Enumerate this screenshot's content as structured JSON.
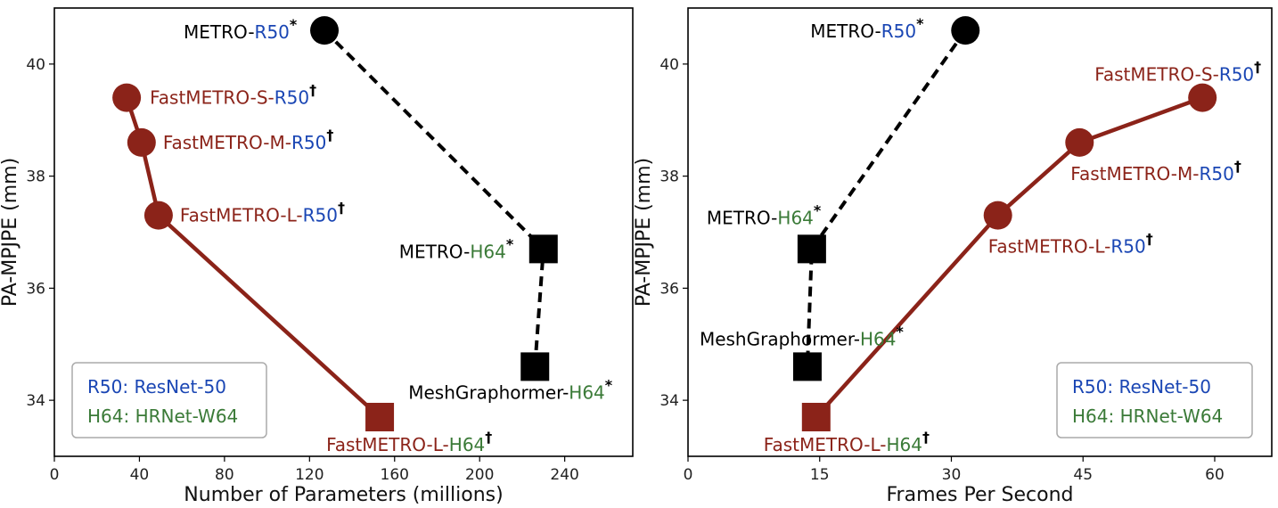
{
  "colors": {
    "fast": "#8b2319",
    "metro": "#000000",
    "r50": "#1a46b4",
    "h64": "#3a7a37",
    "black_text": "#000000"
  },
  "chart_data": [
    {
      "type": "line",
      "xlabel": "Number of Parameters (millions)",
      "ylabel": "PA-MPJPE (mm)",
      "xlim": [
        0,
        272
      ],
      "ylim": [
        33.0,
        41.0
      ],
      "xticks": [
        0,
        40,
        80,
        120,
        160,
        200,
        240
      ],
      "yticks": [
        34,
        36,
        38,
        40
      ],
      "grid": false,
      "legend_position": "bottom-left",
      "legend": [
        {
          "abbr": "R50",
          "text": ": ResNet-50",
          "color": "r50"
        },
        {
          "abbr": "H64",
          "text": ": HRNet-W64",
          "color": "h64"
        }
      ],
      "series": [
        {
          "style": "solid",
          "marker": "circle-square",
          "color": "fast",
          "points": [
            {
              "x": 34,
              "y": 39.4,
              "marker": "circle",
              "label": {
                "model": "FastMETRO-S-",
                "backbone": "R50",
                "mark": "†",
                "backbone_color": "r50",
                "anchor": "right"
              }
            },
            {
              "x": 41,
              "y": 38.6,
              "marker": "circle",
              "label": {
                "model": "FastMETRO-M-",
                "backbone": "R50",
                "mark": "†",
                "backbone_color": "r50",
                "anchor": "right"
              }
            },
            {
              "x": 49,
              "y": 37.3,
              "marker": "circle",
              "label": {
                "model": "FastMETRO-L-",
                "backbone": "R50",
                "mark": "†",
                "backbone_color": "r50",
                "anchor": "right"
              }
            },
            {
              "x": 153,
              "y": 33.7,
              "marker": "square",
              "label": {
                "model": "FastMETRO-L-",
                "backbone": "H64",
                "mark": "†",
                "backbone_color": "h64",
                "anchor": "below"
              }
            }
          ]
        },
        {
          "style": "dashed",
          "color": "metro",
          "points": [
            {
              "x": 127,
              "y": 40.6,
              "marker": "circle",
              "label": {
                "model": "METRO-",
                "backbone": "R50",
                "mark": "*",
                "backbone_color": "r50",
                "anchor": "left"
              }
            },
            {
              "x": 230,
              "y": 36.7,
              "marker": "square",
              "label": {
                "model": "METRO-",
                "backbone": "H64",
                "mark": "*",
                "backbone_color": "h64",
                "anchor": "left"
              }
            },
            {
              "x": 226,
              "y": 34.6,
              "marker": "square",
              "label": {
                "model": "MeshGraphormer-",
                "backbone": "H64",
                "mark": "*",
                "backbone_color": "h64",
                "anchor": "below"
              }
            }
          ]
        }
      ]
    },
    {
      "type": "line",
      "xlabel": "Frames Per Second",
      "ylabel": "PA-MPJPE (mm)",
      "xlim": [
        0,
        66.5
      ],
      "ylim": [
        33.0,
        41.0
      ],
      "xticks": [
        0,
        15,
        30,
        45,
        60
      ],
      "yticks": [
        34,
        36,
        38,
        40
      ],
      "grid": false,
      "legend_position": "bottom-right",
      "legend": [
        {
          "abbr": "R50",
          "text": ": ResNet-50",
          "color": "r50"
        },
        {
          "abbr": "H64",
          "text": ": HRNet-W64",
          "color": "h64"
        }
      ],
      "series": [
        {
          "style": "solid",
          "color": "fast",
          "points": [
            {
              "x": 58.6,
              "y": 39.4,
              "marker": "circle",
              "label": {
                "model": "FastMETRO-S-",
                "backbone": "R50",
                "mark": "†",
                "backbone_color": "r50",
                "anchor": "above"
              }
            },
            {
              "x": 44.6,
              "y": 38.6,
              "marker": "circle",
              "label": {
                "model": "FastMETRO-M-",
                "backbone": "R50",
                "mark": "†",
                "backbone_color": "r50",
                "anchor": "below"
              }
            },
            {
              "x": 35.3,
              "y": 37.3,
              "marker": "circle",
              "label": {
                "model": "FastMETRO-L-",
                "backbone": "R50",
                "mark": "†",
                "backbone_color": "r50",
                "anchor": "below"
              }
            },
            {
              "x": 14.6,
              "y": 33.7,
              "marker": "square",
              "label": {
                "model": "FastMETRO-L-",
                "backbone": "H64",
                "mark": "†",
                "backbone_color": "h64",
                "anchor": "below"
              }
            }
          ]
        },
        {
          "style": "dashed",
          "color": "metro",
          "points": [
            {
              "x": 31.6,
              "y": 40.6,
              "marker": "circle",
              "label": {
                "model": "METRO-",
                "backbone": "R50",
                "mark": "*",
                "backbone_color": "r50",
                "anchor": "left"
              }
            },
            {
              "x": 14.1,
              "y": 36.7,
              "marker": "square",
              "label": {
                "model": "METRO-",
                "backbone": "H64",
                "mark": "*",
                "backbone_color": "h64",
                "anchor": "above"
              }
            },
            {
              "x": 13.6,
              "y": 34.6,
              "marker": "square",
              "label": {
                "model": "MeshGraphormer-",
                "backbone": "H64",
                "mark": "*",
                "backbone_color": "h64",
                "anchor": "above"
              }
            }
          ]
        }
      ]
    }
  ]
}
